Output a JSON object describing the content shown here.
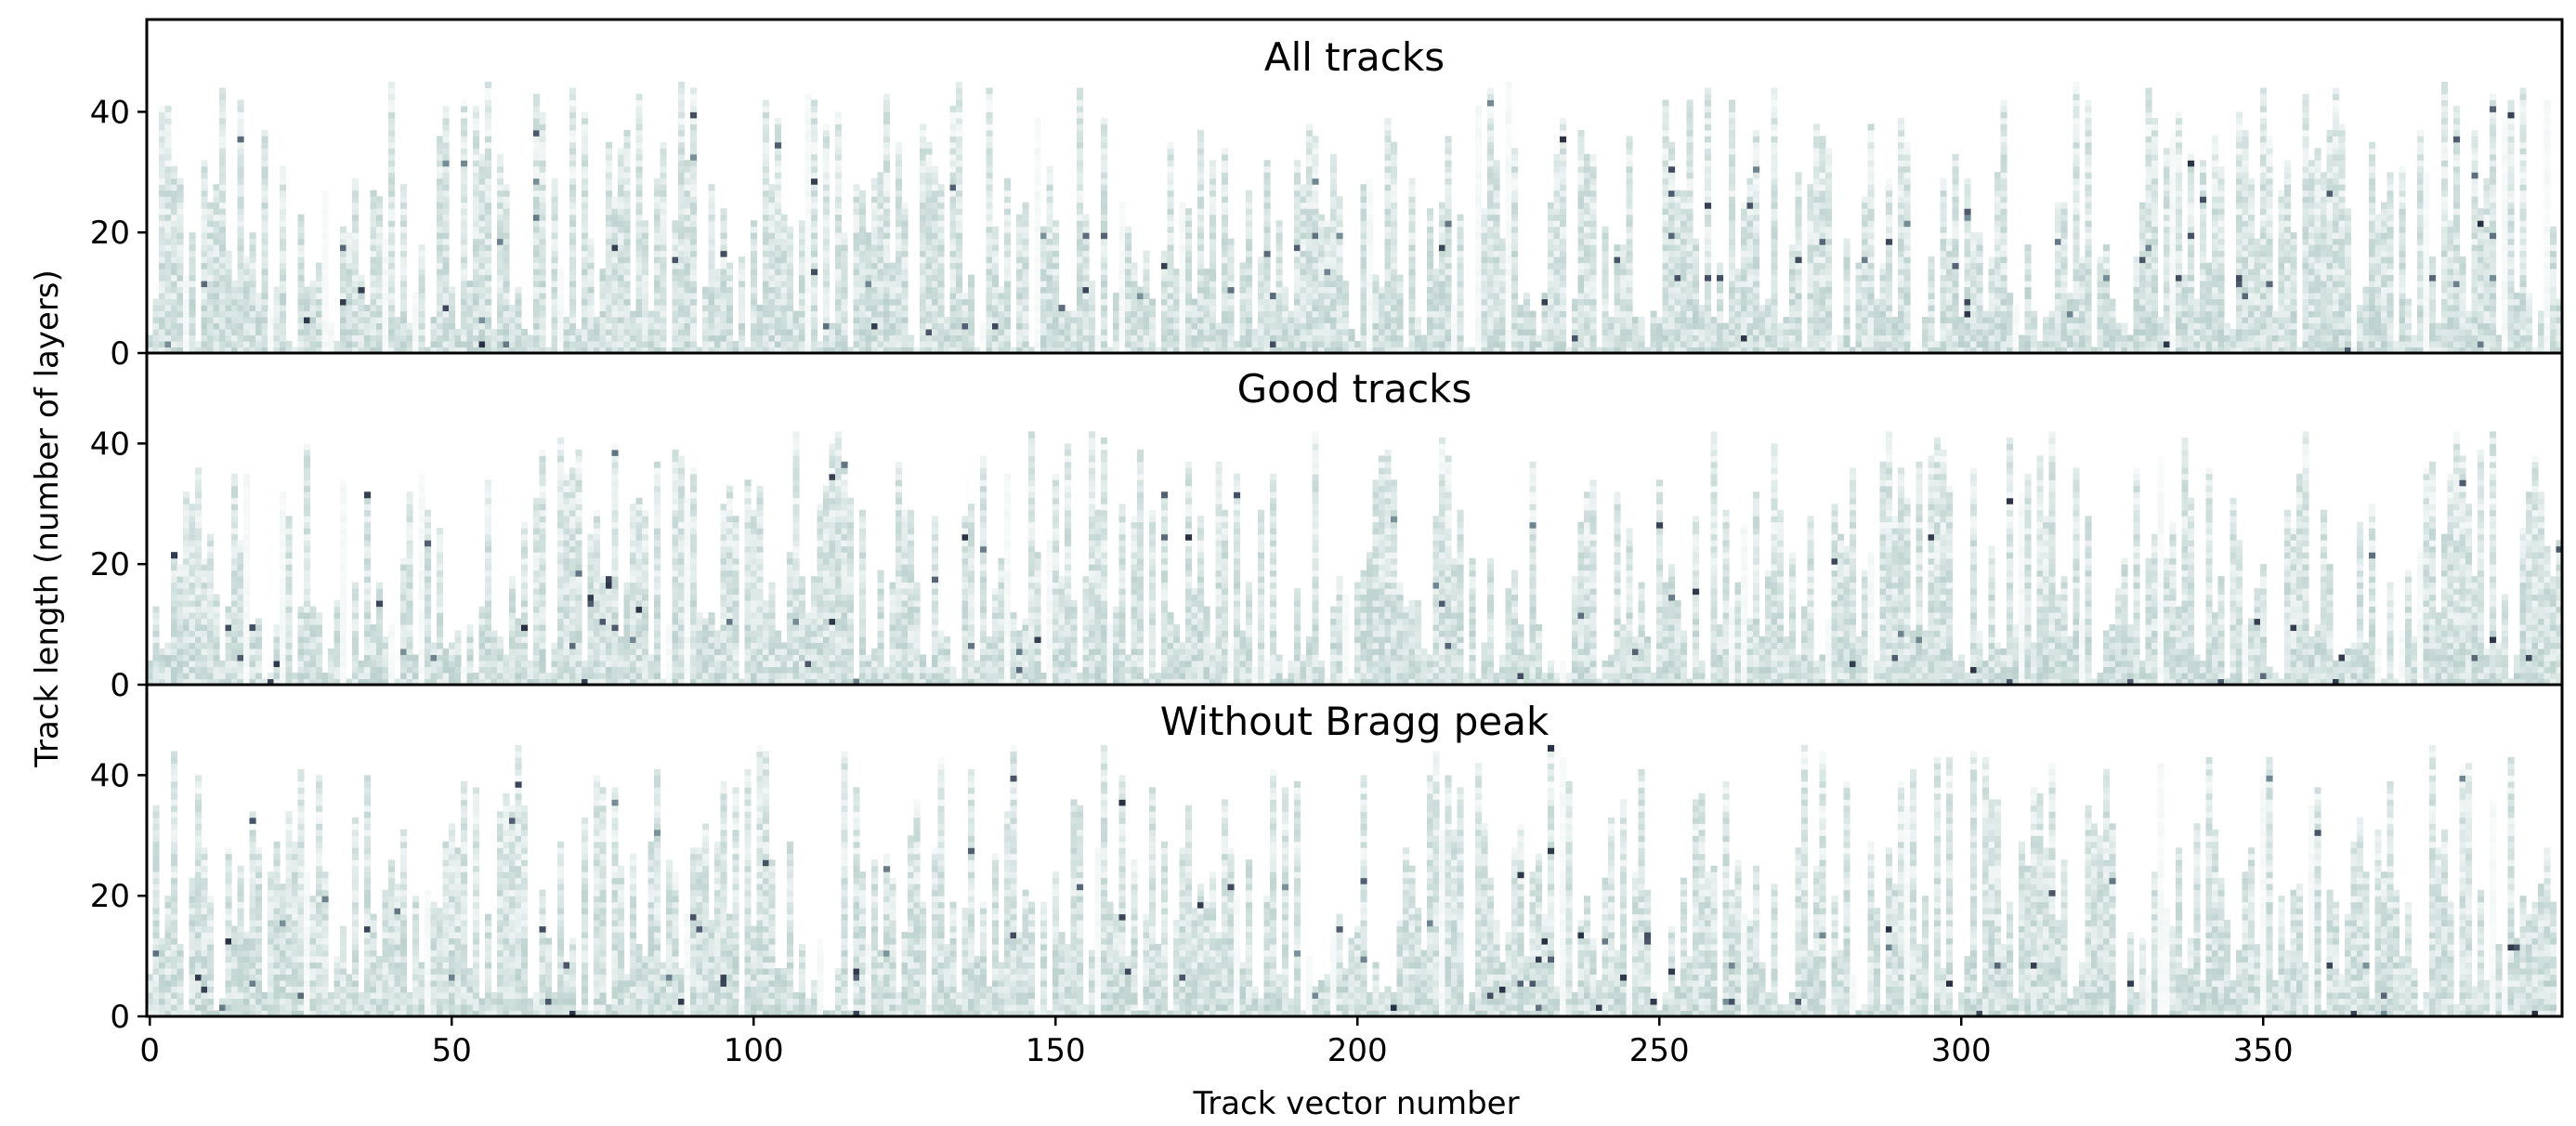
{
  "chart_data": {
    "type": "heatmap",
    "xlabel": "Track vector number",
    "ylabel": "Track length (number of layers)",
    "xlim": [
      -0.5,
      399.5
    ],
    "x_ticks": [
      0,
      50,
      100,
      150,
      200,
      250,
      300,
      350
    ],
    "colormap": [
      "#ffffff",
      "#dde9e7",
      "#b9cfcb",
      "#7f9aa0",
      "#4e5a6e",
      "#1f2638"
    ],
    "panels": [
      {
        "title": "All tracks",
        "ylim": [
          0,
          55
        ],
        "y_ticks": [
          0,
          20,
          40
        ],
        "n_tracks": 400,
        "track_length_range": [
          0,
          45
        ],
        "seed": 11
      },
      {
        "title": "Good tracks",
        "ylim": [
          0,
          55
        ],
        "y_ticks": [
          0,
          20,
          40
        ],
        "n_tracks": 400,
        "track_length_range": [
          0,
          42
        ],
        "seed": 23
      },
      {
        "title": "Without Bragg peak",
        "ylim": [
          0,
          55
        ],
        "y_ticks": [
          0,
          20,
          40
        ],
        "n_tracks": 400,
        "track_length_range": [
          0,
          45
        ],
        "seed": 37
      }
    ]
  }
}
